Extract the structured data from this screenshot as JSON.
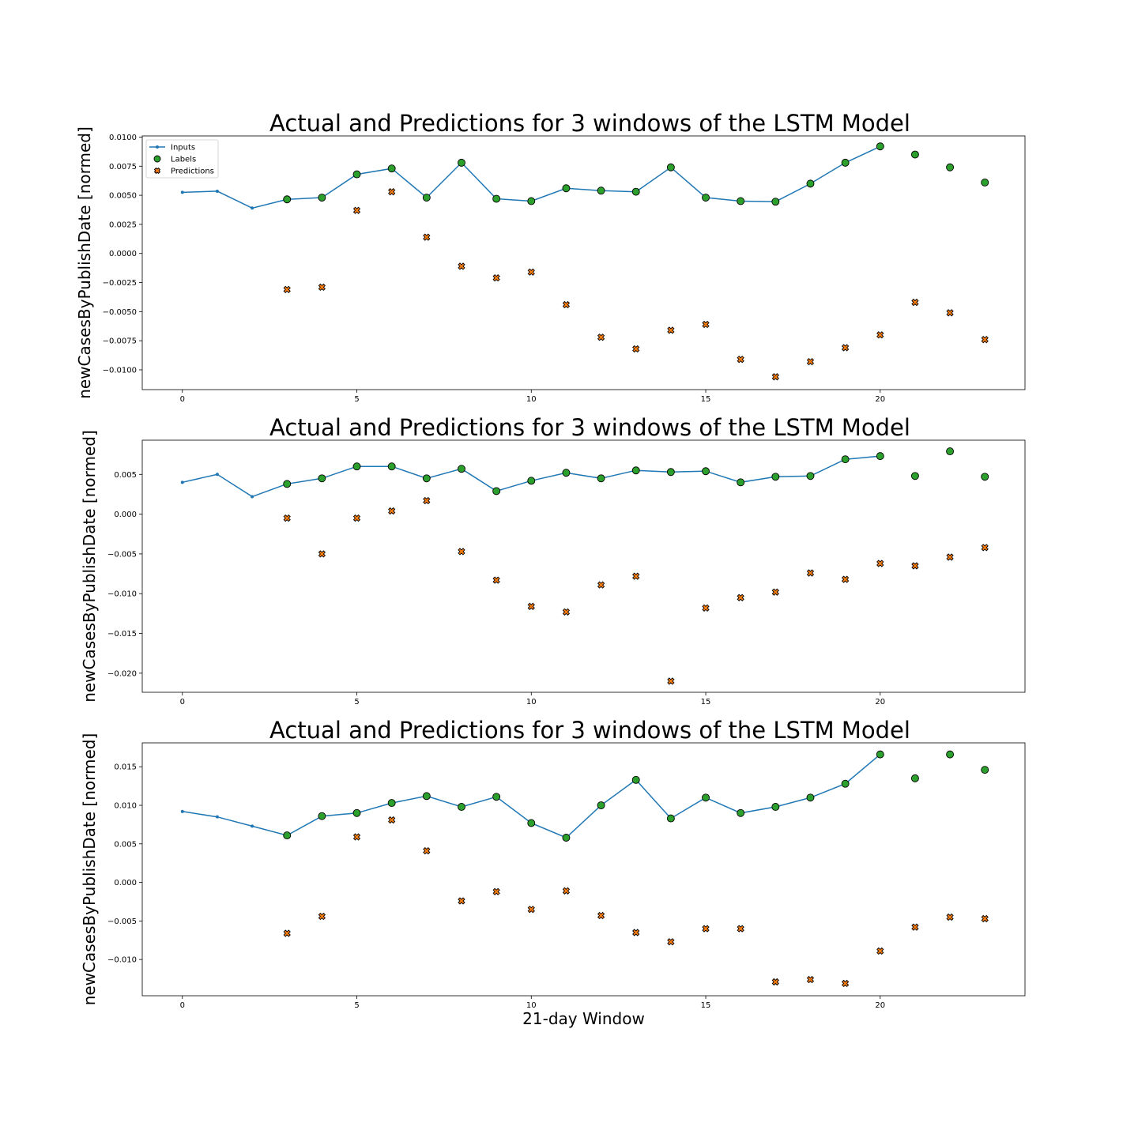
{
  "chart_data": [
    {
      "type": "line",
      "title": "Actual and Predictions for 3 windows of the LSTM Model",
      "ylabel": "newCasesByPublishDate [normed]",
      "xlabel": "",
      "xlim": [
        -1.15,
        24.15
      ],
      "ylim": [
        -0.0117,
        0.0101
      ],
      "xticks": [
        0,
        5,
        10,
        15,
        20
      ],
      "yticks": [
        -0.01,
        -0.0075,
        -0.005,
        -0.0025,
        0.0,
        0.0025,
        0.005,
        0.0075,
        0.01
      ],
      "ytick_labels": [
        "−0.0100",
        "−0.0075",
        "−0.0050",
        "−0.0025",
        "0.0000",
        "0.0025",
        "0.0050",
        "0.0075",
        "0.0100"
      ],
      "legend": {
        "placement": "upper-left",
        "entries": [
          "Inputs",
          "Labels",
          "Predictions"
        ]
      },
      "series": [
        {
          "name": "Inputs",
          "kind": "line",
          "color": "#1f77b4",
          "x": [
            0,
            1,
            2,
            3,
            4,
            5,
            6,
            7,
            8,
            9,
            10,
            11,
            12,
            13,
            14,
            15,
            16,
            17,
            18,
            19,
            20
          ],
          "values": [
            0.00525,
            0.00535,
            0.0039,
            0.00465,
            0.0048,
            0.0068,
            0.0073,
            0.0048,
            0.0078,
            0.0047,
            0.0045,
            0.0056,
            0.0054,
            0.0053,
            0.0074,
            0.0048,
            0.0045,
            0.00445,
            0.006,
            0.0078,
            0.0092
          ]
        },
        {
          "name": "Labels",
          "kind": "scatter",
          "color": "#2ca02c",
          "x": [
            3,
            4,
            5,
            6,
            7,
            8,
            9,
            10,
            11,
            12,
            13,
            14,
            15,
            16,
            17,
            18,
            19,
            20,
            21,
            22,
            23
          ],
          "values": [
            0.00465,
            0.0048,
            0.0068,
            0.0073,
            0.0048,
            0.0078,
            0.0047,
            0.0045,
            0.0056,
            0.0054,
            0.0053,
            0.0074,
            0.0048,
            0.0045,
            0.00445,
            0.006,
            0.0078,
            0.0092,
            0.0085,
            0.0074,
            0.0061
          ]
        },
        {
          "name": "Predictions",
          "kind": "scatter",
          "color": "#ff7f0e",
          "x": [
            3,
            4,
            5,
            6,
            7,
            8,
            9,
            10,
            11,
            12,
            13,
            14,
            15,
            16,
            17,
            18,
            19,
            20,
            21,
            22,
            23
          ],
          "values": [
            -0.0031,
            -0.0029,
            0.0037,
            0.0053,
            0.0014,
            -0.0011,
            -0.0021,
            -0.0016,
            -0.0044,
            -0.0072,
            -0.0082,
            -0.0066,
            -0.0061,
            -0.0091,
            -0.0106,
            -0.0093,
            -0.0081,
            -0.007,
            -0.0042,
            -0.0051,
            -0.0074
          ]
        }
      ]
    },
    {
      "type": "line",
      "title": "Actual and Predictions for 3 windows of the LSTM Model",
      "ylabel": "newCasesByPublishDate [normed]",
      "xlabel": "",
      "xlim": [
        -1.15,
        24.15
      ],
      "ylim": [
        -0.0224,
        0.0093
      ],
      "xticks": [
        0,
        5,
        10,
        15,
        20
      ],
      "yticks": [
        -0.02,
        -0.015,
        -0.01,
        -0.005,
        0.0,
        0.005
      ],
      "ytick_labels": [
        "−0.020",
        "−0.015",
        "−0.010",
        "−0.005",
        "0.000",
        "0.005"
      ],
      "series": [
        {
          "name": "Inputs",
          "kind": "line",
          "color": "#1f77b4",
          "x": [
            0,
            1,
            2,
            3,
            4,
            5,
            6,
            7,
            8,
            9,
            10,
            11,
            12,
            13,
            14,
            15,
            16,
            17,
            18,
            19,
            20
          ],
          "values": [
            0.004,
            0.005,
            0.0022,
            0.0038,
            0.0045,
            0.006,
            0.006,
            0.0045,
            0.0057,
            0.0029,
            0.0042,
            0.0052,
            0.0045,
            0.0055,
            0.0053,
            0.0054,
            0.004,
            0.0047,
            0.0048,
            0.0069,
            0.0073
          ]
        },
        {
          "name": "Labels",
          "kind": "scatter",
          "color": "#2ca02c",
          "x": [
            3,
            4,
            5,
            6,
            7,
            8,
            9,
            10,
            11,
            12,
            13,
            14,
            15,
            16,
            17,
            18,
            19,
            20,
            21,
            22,
            23
          ],
          "values": [
            0.0038,
            0.0045,
            0.006,
            0.006,
            0.0045,
            0.0057,
            0.0029,
            0.0042,
            0.0052,
            0.0045,
            0.0055,
            0.0053,
            0.0054,
            0.004,
            0.0047,
            0.0048,
            0.0069,
            0.0073,
            0.0048,
            0.0079,
            0.0047
          ]
        },
        {
          "name": "Predictions",
          "kind": "scatter",
          "color": "#ff7f0e",
          "x": [
            3,
            4,
            5,
            6,
            7,
            8,
            9,
            10,
            11,
            12,
            13,
            14,
            15,
            16,
            17,
            18,
            19,
            20,
            21,
            22,
            23
          ],
          "values": [
            -0.0005,
            -0.005,
            -0.0005,
            0.0004,
            0.0017,
            -0.0047,
            -0.0083,
            -0.0116,
            -0.0123,
            -0.0089,
            -0.0078,
            -0.021,
            -0.0118,
            -0.0105,
            -0.0098,
            -0.0074,
            -0.0082,
            -0.0062,
            -0.0065,
            -0.0054,
            -0.0042
          ]
        }
      ]
    },
    {
      "type": "line",
      "title": "Actual and Predictions for 3 windows of the LSTM Model",
      "ylabel": "newCasesByPublishDate [normed]",
      "xlabel": "21-day Window",
      "xlim": [
        -1.15,
        24.15
      ],
      "ylim": [
        -0.0147,
        0.0181
      ],
      "xticks": [
        0,
        5,
        10,
        15,
        20
      ],
      "yticks": [
        -0.01,
        -0.005,
        0.0,
        0.005,
        0.01,
        0.015
      ],
      "ytick_labels": [
        "−0.010",
        "−0.005",
        "0.000",
        "0.005",
        "0.010",
        "0.015"
      ],
      "series": [
        {
          "name": "Inputs",
          "kind": "line",
          "color": "#1f77b4",
          "x": [
            0,
            1,
            2,
            3,
            4,
            5,
            6,
            7,
            8,
            9,
            10,
            11,
            12,
            13,
            14,
            15,
            16,
            17,
            18,
            19,
            20
          ],
          "values": [
            0.0092,
            0.0085,
            0.0073,
            0.0061,
            0.0086,
            0.009,
            0.0103,
            0.0112,
            0.0098,
            0.0111,
            0.0077,
            0.0058,
            0.01,
            0.0133,
            0.0083,
            0.011,
            0.009,
            0.0098,
            0.011,
            0.0128,
            0.0166
          ]
        },
        {
          "name": "Labels",
          "kind": "scatter",
          "color": "#2ca02c",
          "x": [
            3,
            4,
            5,
            6,
            7,
            8,
            9,
            10,
            11,
            12,
            13,
            14,
            15,
            16,
            17,
            18,
            19,
            20,
            21,
            22,
            23
          ],
          "values": [
            0.0061,
            0.0086,
            0.009,
            0.0103,
            0.0112,
            0.0098,
            0.0111,
            0.0077,
            0.0058,
            0.01,
            0.0133,
            0.0083,
            0.011,
            0.009,
            0.0098,
            0.011,
            0.0128,
            0.0166,
            0.0135,
            0.0166,
            0.0146
          ]
        },
        {
          "name": "Predictions",
          "kind": "scatter",
          "color": "#ff7f0e",
          "x": [
            3,
            4,
            5,
            6,
            7,
            8,
            9,
            10,
            11,
            12,
            13,
            14,
            15,
            16,
            17,
            18,
            19,
            20,
            21,
            22,
            23
          ],
          "values": [
            -0.0066,
            -0.0044,
            0.0059,
            0.0081,
            0.0041,
            -0.0024,
            -0.0012,
            -0.0035,
            -0.0011,
            -0.0043,
            -0.0065,
            -0.0077,
            -0.006,
            -0.006,
            -0.0129,
            -0.0126,
            -0.0131,
            -0.0089,
            -0.0058,
            -0.0045,
            -0.0047
          ]
        }
      ]
    }
  ]
}
